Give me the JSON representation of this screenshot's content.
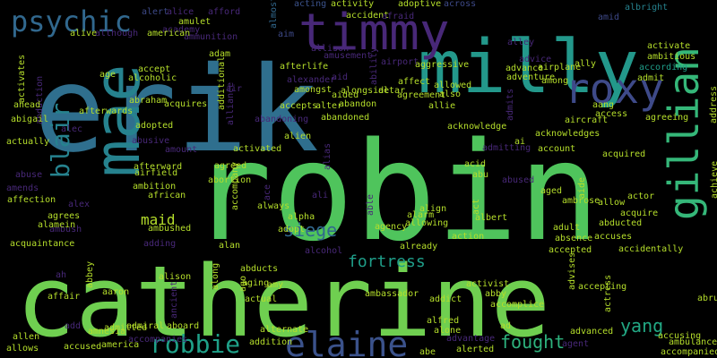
{
  "palette": [
    "#440154",
    "#482878",
    "#3e4a89",
    "#31688e",
    "#26828e",
    "#1f9e89",
    "#35b779",
    "#6ece58",
    "#b5de2b",
    "#fde725"
  ],
  "words": [
    {
      "text": "robin",
      "color": "#4fc45c"
    },
    {
      "text": "catherine",
      "color": "#6fcf50"
    },
    {
      "text": "erik",
      "color": "#2f6f8e"
    },
    {
      "text": "milly",
      "color": "#23988b"
    },
    {
      "text": "mae",
      "color": "#26828e"
    },
    {
      "text": "timmy",
      "color": "#482878"
    },
    {
      "text": "gillian",
      "color": "#35b779"
    },
    {
      "text": "roxy",
      "color": "#3e4a89"
    },
    {
      "text": "elaine",
      "color": "#3b528b"
    },
    {
      "text": "psychic",
      "color": "#31688e"
    },
    {
      "text": "robbie",
      "color": "#1fa088"
    },
    {
      "text": "blair",
      "color": "#26828e"
    },
    {
      "text": "fought",
      "color": "#2db27d"
    },
    {
      "text": "yang",
      "color": "#22a884"
    },
    {
      "text": "siege",
      "color": "#31688e"
    },
    {
      "text": "maid",
      "color": "#b5de2b"
    },
    {
      "text": "fortress",
      "color": "#1f9e89"
    },
    {
      "text": "alert",
      "color": "#3e4a89"
    },
    {
      "text": "alice",
      "color": "#482878"
    },
    {
      "text": "afford",
      "color": "#482878"
    },
    {
      "text": "acting",
      "color": "#3b528b"
    },
    {
      "text": "activity",
      "color": "#b5de2b"
    },
    {
      "text": "adoptive",
      "color": "#b5de2b"
    },
    {
      "text": "across",
      "color": "#3e4a89"
    },
    {
      "text": "amid",
      "color": "#3e4a89"
    },
    {
      "text": "albright",
      "color": "#26828e"
    },
    {
      "text": "activate",
      "color": "#b5de2b"
    },
    {
      "text": "ambitious",
      "color": "#b5de2b"
    },
    {
      "text": "according",
      "color": "#1f9e89"
    },
    {
      "text": "amulet",
      "color": "#b5de2b"
    },
    {
      "text": "academy",
      "color": "#482878"
    },
    {
      "text": "alive",
      "color": "#b5de2b"
    },
    {
      "text": "although",
      "color": "#482878"
    },
    {
      "text": "american",
      "color": "#b5de2b"
    },
    {
      "text": "ammunition",
      "color": "#482878"
    },
    {
      "text": "adam",
      "color": "#b5de2b"
    },
    {
      "text": "aim",
      "color": "#3e4a89"
    },
    {
      "text": "almost",
      "color": "#31688e"
    },
    {
      "text": "accident",
      "color": "#b5de2b"
    },
    {
      "text": "afraid",
      "color": "#482878"
    },
    {
      "text": "amusement",
      "color": "#482878"
    },
    {
      "text": "airport",
      "color": "#482878"
    },
    {
      "text": "ability",
      "color": "#482878"
    },
    {
      "text": "alley",
      "color": "#482878"
    },
    {
      "text": "advice",
      "color": "#482878"
    },
    {
      "text": "advance",
      "color": "#b5de2b"
    },
    {
      "text": "airplane",
      "color": "#b5de2b"
    },
    {
      "text": "ally",
      "color": "#b5de2b"
    },
    {
      "text": "admit",
      "color": "#b5de2b"
    },
    {
      "text": "adventure",
      "color": "#b5de2b"
    },
    {
      "text": "among",
      "color": "#b5de2b"
    },
    {
      "text": "age",
      "color": "#b5de2b"
    },
    {
      "text": "accept",
      "color": "#b5de2b"
    },
    {
      "text": "alcoholic",
      "color": "#b5de2b"
    },
    {
      "text": "abraham",
      "color": "#b5de2b"
    },
    {
      "text": "afterlife",
      "color": "#b5de2b"
    },
    {
      "text": "alexander",
      "color": "#482878"
    },
    {
      "text": "aid",
      "color": "#482878"
    },
    {
      "text": "alongside",
      "color": "#b5de2b"
    },
    {
      "text": "aggressive",
      "color": "#b5de2b"
    },
    {
      "text": "amongst",
      "color": "#b5de2b"
    },
    {
      "text": "altar",
      "color": "#b5de2b"
    },
    {
      "text": "affect",
      "color": "#b5de2b"
    },
    {
      "text": "allowed",
      "color": "#b5de2b"
    },
    {
      "text": "also",
      "color": "#b5de2b"
    },
    {
      "text": "agreement",
      "color": "#b5de2b"
    },
    {
      "text": "air",
      "color": "#482878"
    },
    {
      "text": "aided",
      "color": "#b5de2b"
    },
    {
      "text": "accepts",
      "color": "#b5de2b"
    },
    {
      "text": "alter",
      "color": "#b5de2b"
    },
    {
      "text": "abandon",
      "color": "#b5de2b"
    },
    {
      "text": "abandoning",
      "color": "#482878"
    },
    {
      "text": "abandoned",
      "color": "#b5de2b"
    },
    {
      "text": "activates",
      "color": "#b5de2b"
    },
    {
      "text": "abduction",
      "color": "#482878"
    },
    {
      "text": "ahead",
      "color": "#b5de2b"
    },
    {
      "text": "afterwards",
      "color": "#b5de2b"
    },
    {
      "text": "acquires",
      "color": "#b5de2b"
    },
    {
      "text": "abigail",
      "color": "#b5de2b"
    },
    {
      "text": "alec",
      "color": "#482878"
    },
    {
      "text": "adopted",
      "color": "#b5de2b"
    },
    {
      "text": "alien",
      "color": "#b5de2b"
    },
    {
      "text": "actually",
      "color": "#b5de2b"
    },
    {
      "text": "abusive",
      "color": "#482878"
    },
    {
      "text": "activated",
      "color": "#b5de2b"
    },
    {
      "text": "amount",
      "color": "#482878"
    },
    {
      "text": "abuse",
      "color": "#482878"
    },
    {
      "text": "afterward",
      "color": "#b5de2b"
    },
    {
      "text": "airfield",
      "color": "#b5de2b"
    },
    {
      "text": "agreed",
      "color": "#b5de2b"
    },
    {
      "text": "amends",
      "color": "#482878"
    },
    {
      "text": "affection",
      "color": "#b5de2b"
    },
    {
      "text": "ambition",
      "color": "#b5de2b"
    },
    {
      "text": "african",
      "color": "#b5de2b"
    },
    {
      "text": "abortion",
      "color": "#b5de2b"
    },
    {
      "text": "always",
      "color": "#b5de2b"
    },
    {
      "text": "alex",
      "color": "#482878"
    },
    {
      "text": "agrees",
      "color": "#b5de2b"
    },
    {
      "text": "ambush",
      "color": "#482878"
    },
    {
      "text": "alamein",
      "color": "#b5de2b"
    },
    {
      "text": "acquaintance",
      "color": "#b5de2b"
    },
    {
      "text": "ambushed",
      "color": "#b5de2b"
    },
    {
      "text": "adding",
      "color": "#482878"
    },
    {
      "text": "alpha",
      "color": "#b5de2b"
    },
    {
      "text": "adopt",
      "color": "#b5de2b"
    },
    {
      "text": "alcohol",
      "color": "#482878"
    },
    {
      "text": "ali",
      "color": "#482878"
    },
    {
      "text": "agency",
      "color": "#b5de2b"
    },
    {
      "text": "allowing",
      "color": "#b5de2b"
    },
    {
      "text": "already",
      "color": "#b5de2b"
    },
    {
      "text": "action",
      "color": "#b5de2b"
    },
    {
      "text": "alarm",
      "color": "#b5de2b"
    },
    {
      "text": "albert",
      "color": "#b5de2b"
    },
    {
      "text": "abu",
      "color": "#b5de2b"
    },
    {
      "text": "acid",
      "color": "#b5de2b"
    },
    {
      "text": "abused",
      "color": "#482878"
    },
    {
      "text": "aged",
      "color": "#b5de2b"
    },
    {
      "text": "adult",
      "color": "#b5de2b"
    },
    {
      "text": "absence",
      "color": "#b5de2b"
    },
    {
      "text": "accuses",
      "color": "#b5de2b"
    },
    {
      "text": "accidentally",
      "color": "#b5de2b"
    },
    {
      "text": "abducted",
      "color": "#b5de2b"
    },
    {
      "text": "accepted",
      "color": "#b5de2b"
    },
    {
      "text": "allow",
      "color": "#b5de2b"
    },
    {
      "text": "acquire",
      "color": "#b5de2b"
    },
    {
      "text": "achieve",
      "color": "#b5de2b"
    },
    {
      "text": "address",
      "color": "#b5de2b"
    },
    {
      "text": "agreeing",
      "color": "#b5de2b"
    },
    {
      "text": "access",
      "color": "#b5de2b"
    },
    {
      "text": "aircraft",
      "color": "#b5de2b"
    },
    {
      "text": "aang",
      "color": "#b5de2b"
    },
    {
      "text": "acknowledges",
      "color": "#b5de2b"
    },
    {
      "text": "account",
      "color": "#b5de2b"
    },
    {
      "text": "acquired",
      "color": "#b5de2b"
    },
    {
      "text": "actor",
      "color": "#b5de2b"
    },
    {
      "text": "ambrose",
      "color": "#b5de2b"
    },
    {
      "text": "aide",
      "color": "#b5de2b"
    },
    {
      "text": "ai",
      "color": "#b5de2b"
    },
    {
      "text": "admits",
      "color": "#482878"
    },
    {
      "text": "allie",
      "color": "#b5de2b"
    },
    {
      "text": "acknowledge",
      "color": "#b5de2b"
    },
    {
      "text": "admitting",
      "color": "#482878"
    },
    {
      "text": "align",
      "color": "#b5de2b"
    },
    {
      "text": "ace",
      "color": "#482878"
    },
    {
      "text": "accompany",
      "color": "#b5de2b"
    },
    {
      "text": "additional",
      "color": "#b5de2b"
    },
    {
      "text": "alliance",
      "color": "#482878"
    },
    {
      "text": "alias",
      "color": "#482878"
    },
    {
      "text": "able",
      "color": "#482878"
    },
    {
      "text": "act",
      "color": "#b5de2b"
    },
    {
      "text": "alan",
      "color": "#b5de2b"
    },
    {
      "text": "abducts",
      "color": "#b5de2b"
    },
    {
      "text": "alison",
      "color": "#b5de2b"
    },
    {
      "text": "aaron",
      "color": "#b5de2b"
    },
    {
      "text": "along",
      "color": "#b5de2b"
    },
    {
      "text": "aging",
      "color": "#b5de2b"
    },
    {
      "text": "actual",
      "color": "#b5de2b"
    },
    {
      "text": "ago",
      "color": "#b5de2b"
    },
    {
      "text": "amy",
      "color": "#b5de2b"
    },
    {
      "text": "abbey",
      "color": "#b5de2b"
    },
    {
      "text": "ah",
      "color": "#482878"
    },
    {
      "text": "affair",
      "color": "#b5de2b"
    },
    {
      "text": "ambassador",
      "color": "#b5de2b"
    },
    {
      "text": "addict",
      "color": "#b5de2b"
    },
    {
      "text": "activist",
      "color": "#b5de2b"
    },
    {
      "text": "abby",
      "color": "#b5de2b"
    },
    {
      "text": "accomplice",
      "color": "#b5de2b"
    },
    {
      "text": "advises",
      "color": "#b5de2b"
    },
    {
      "text": "accepting",
      "color": "#b5de2b"
    },
    {
      "text": "abruptly",
      "color": "#b5de2b"
    },
    {
      "text": "ancient",
      "color": "#482878"
    },
    {
      "text": "add",
      "color": "#482878"
    },
    {
      "text": "admitted",
      "color": "#b5de2b"
    },
    {
      "text": "admiral",
      "color": "#b5de2b"
    },
    {
      "text": "aboard",
      "color": "#b5de2b"
    },
    {
      "text": "alternate",
      "color": "#b5de2b"
    },
    {
      "text": "alfred",
      "color": "#b5de2b"
    },
    {
      "text": "ad",
      "color": "#b5de2b"
    },
    {
      "text": "alone",
      "color": "#b5de2b"
    },
    {
      "text": "advantage",
      "color": "#482878"
    },
    {
      "text": "advanced",
      "color": "#b5de2b"
    },
    {
      "text": "actress",
      "color": "#b5de2b"
    },
    {
      "text": "agent",
      "color": "#482878"
    },
    {
      "text": "accusing",
      "color": "#b5de2b"
    },
    {
      "text": "ambulance",
      "color": "#b5de2b"
    },
    {
      "text": "accompanied",
      "color": "#b5de2b"
    },
    {
      "text": "allen",
      "color": "#b5de2b"
    },
    {
      "text": "accused",
      "color": "#b5de2b"
    },
    {
      "text": "america",
      "color": "#b5de2b"
    },
    {
      "text": "accompanies",
      "color": "#482878"
    },
    {
      "text": "addition",
      "color": "#b5de2b"
    },
    {
      "text": "allows",
      "color": "#b5de2b"
    },
    {
      "text": "abe",
      "color": "#b5de2b"
    },
    {
      "text": "alerted",
      "color": "#b5de2b"
    },
    {
      "text": "amnesia",
      "color": "#b5de2b"
    },
    {
      "text": "allison",
      "color": "#482878"
    },
    {
      "text": "aftermath",
      "color": "#b5de2b"
    },
    {
      "text": "ace",
      "color": "#b5de2b"
    },
    {
      "text": "active",
      "color": "#b5de2b"
    }
  ]
}
